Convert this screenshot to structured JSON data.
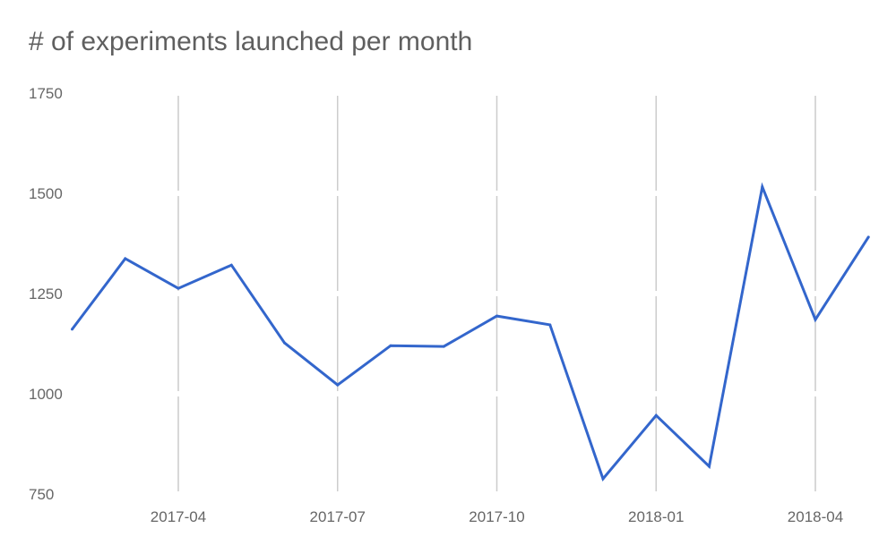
{
  "chart_data": {
    "type": "line",
    "title": "# of experiments launched per month",
    "xlabel": "",
    "ylabel": "",
    "ylim": [
      750,
      1750
    ],
    "yticks": [
      "750",
      "1000",
      "1250",
      "1500",
      "1750"
    ],
    "xticks": [
      "2017-04",
      "2017-07",
      "2017-10",
      "2018-01",
      "2018-04"
    ],
    "grid": "vertical",
    "line_color": "#3366cc",
    "x": [
      "2017-02",
      "2017-03",
      "2017-04",
      "2017-05",
      "2017-06",
      "2017-07",
      "2017-08",
      "2017-09",
      "2017-10",
      "2017-11",
      "2017-12",
      "2018-01",
      "2018-02",
      "2018-03",
      "2018-04",
      "2018-05"
    ],
    "values": [
      1161,
      1337,
      1263,
      1321,
      1127,
      1022,
      1120,
      1118,
      1194,
      1172,
      788,
      946,
      819,
      1516,
      1185,
      1391
    ]
  }
}
